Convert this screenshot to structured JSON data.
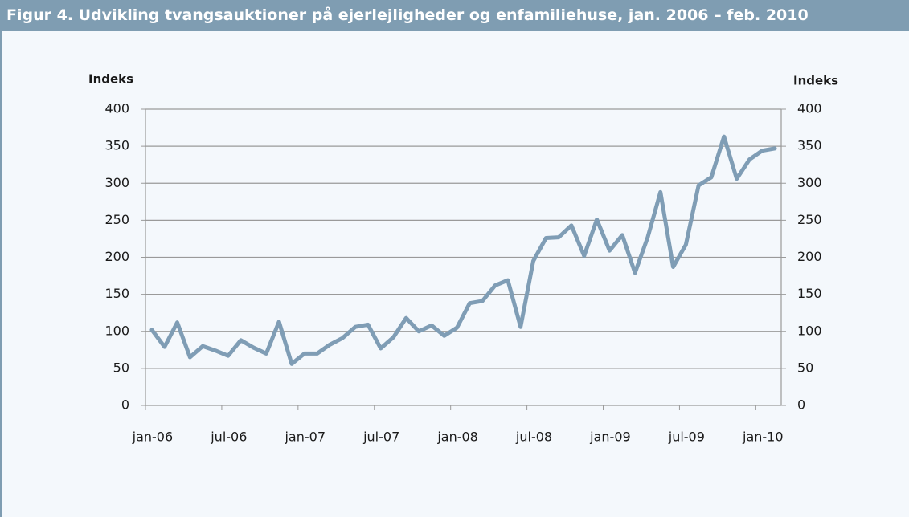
{
  "chart_data": {
    "type": "line",
    "title": "Figur 4. Udvikling tvangsauktioner på ejerlejligheder og enfamiliehuse, jan. 2006 – feb. 2010",
    "y_label": "Indeks",
    "y2_label": "Indeks",
    "categories": [
      "jan-06",
      null,
      null,
      null,
      null,
      null,
      "jul-06",
      null,
      null,
      null,
      null,
      null,
      "jan-07",
      null,
      null,
      null,
      null,
      null,
      "jul-07",
      null,
      null,
      null,
      null,
      null,
      "jan-08",
      null,
      null,
      null,
      null,
      null,
      "jul-08",
      null,
      null,
      null,
      null,
      null,
      "jan-09",
      null,
      null,
      null,
      null,
      null,
      "jul-09",
      null,
      null,
      null,
      null,
      null,
      "jan-10",
      null
    ],
    "series": [
      {
        "name": "Indeks",
        "color": "#7f9db5",
        "values": [
          102,
          79,
          112,
          65,
          80,
          74,
          67,
          88,
          78,
          70,
          113,
          56,
          70,
          70,
          82,
          91,
          106,
          109,
          77,
          92,
          118,
          100,
          108,
          94,
          105,
          138,
          141,
          162,
          169,
          106,
          195,
          226,
          227,
          243,
          202,
          251,
          209,
          230,
          179,
          227,
          288,
          187,
          217,
          297,
          308,
          363,
          306,
          332,
          344,
          347
        ]
      }
    ],
    "ylim": [
      0,
      400
    ],
    "yticks": [
      0,
      50,
      100,
      150,
      200,
      250,
      300,
      350,
      400
    ],
    "grid": true
  }
}
